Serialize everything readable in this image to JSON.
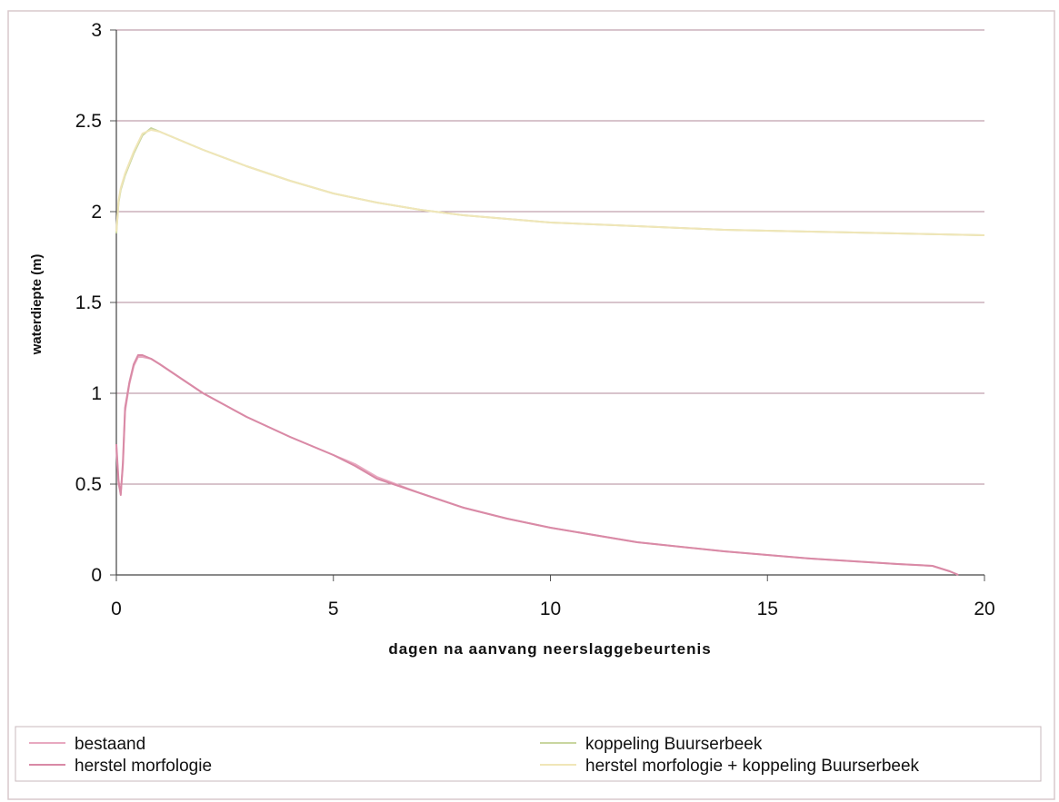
{
  "chart_data": {
    "type": "line",
    "title": "",
    "xlabel": "dagen na aanvang neerslaggebeurtenis",
    "ylabel": "waterdiepte (m)",
    "xlim": [
      0,
      20
    ],
    "ylim": [
      0,
      3
    ],
    "x_ticks": [
      "0",
      "5",
      "10",
      "15",
      "20"
    ],
    "y_ticks": [
      "0",
      "0.5",
      "1",
      "1.5",
      "2",
      "2.5",
      "3"
    ],
    "grid": "horizontal",
    "legend_position": "bottom",
    "series": [
      {
        "name": "bestaand",
        "color": "#e8a9c0",
        "x": [
          0,
          0.05,
          0.1,
          0.15,
          0.2,
          0.3,
          0.4,
          0.5,
          0.6,
          0.8,
          1,
          1.5,
          2,
          3,
          4,
          5,
          5.5,
          6,
          7,
          8,
          9,
          10,
          12,
          14,
          16,
          18,
          18.8,
          19.2,
          19.4
        ],
        "y": [
          0.7,
          0.5,
          0.45,
          0.6,
          0.9,
          1.05,
          1.15,
          1.2,
          1.2,
          1.19,
          1.16,
          1.08,
          1.0,
          0.87,
          0.76,
          0.66,
          0.61,
          0.54,
          0.45,
          0.37,
          0.31,
          0.26,
          0.18,
          0.13,
          0.09,
          0.06,
          0.05,
          0.02,
          0.0
        ]
      },
      {
        "name": "herstel morfologie",
        "color": "#d98aa6",
        "x": [
          0,
          0.05,
          0.1,
          0.15,
          0.2,
          0.3,
          0.4,
          0.5,
          0.6,
          0.8,
          1,
          1.5,
          2,
          3,
          4,
          5,
          5.5,
          6,
          7,
          8,
          9,
          10,
          12,
          14,
          16,
          18,
          18.8,
          19.2,
          19.4
        ],
        "y": [
          0.72,
          0.52,
          0.44,
          0.62,
          0.92,
          1.06,
          1.16,
          1.21,
          1.21,
          1.19,
          1.16,
          1.08,
          1.0,
          0.87,
          0.76,
          0.66,
          0.6,
          0.53,
          0.45,
          0.37,
          0.31,
          0.26,
          0.18,
          0.13,
          0.09,
          0.06,
          0.05,
          0.02,
          0.0
        ]
      },
      {
        "name": "koppeling Buurserbeek",
        "color": "#c9d6a0",
        "x": [
          0,
          0.05,
          0.1,
          0.2,
          0.4,
          0.6,
          0.8,
          1,
          1.5,
          2,
          3,
          4,
          5,
          6,
          7,
          8,
          9,
          10,
          12,
          14,
          16,
          18,
          20
        ],
        "y": [
          1.88,
          2.05,
          2.12,
          2.2,
          2.32,
          2.42,
          2.46,
          2.44,
          2.39,
          2.34,
          2.25,
          2.17,
          2.1,
          2.05,
          2.01,
          1.98,
          1.96,
          1.94,
          1.92,
          1.9,
          1.89,
          1.88,
          1.87
        ]
      },
      {
        "name": "herstel morfologie + koppeling Buurserbeek",
        "color": "#f0e6b8",
        "x": [
          0,
          0.05,
          0.1,
          0.2,
          0.4,
          0.6,
          0.8,
          1,
          1.5,
          2,
          3,
          4,
          5,
          6,
          7,
          8,
          9,
          10,
          12,
          14,
          16,
          18,
          20
        ],
        "y": [
          1.89,
          2.06,
          2.13,
          2.21,
          2.33,
          2.43,
          2.45,
          2.44,
          2.39,
          2.34,
          2.25,
          2.17,
          2.1,
          2.05,
          2.01,
          1.98,
          1.96,
          1.94,
          1.92,
          1.9,
          1.89,
          1.88,
          1.87
        ]
      }
    ]
  }
}
